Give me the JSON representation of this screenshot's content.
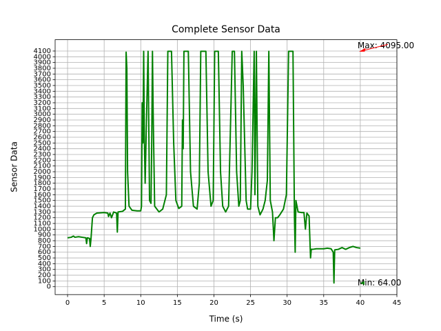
{
  "chart_data": {
    "type": "line",
    "title": "Complete Sensor Data",
    "xlabel": "Time (s)",
    "ylabel": "Sensor Data",
    "color": "#008000",
    "grid": true,
    "xlim": [
      -1.7,
      45
    ],
    "ylim": [
      -137.5,
      4296.5
    ],
    "xticks": [
      0,
      5,
      10,
      15,
      20,
      25,
      30,
      35,
      40,
      45
    ],
    "yticks": [
      0,
      100,
      200,
      300,
      400,
      500,
      600,
      700,
      800,
      900,
      1000,
      1100,
      1200,
      1300,
      1400,
      1500,
      1600,
      1700,
      1800,
      1900,
      2000,
      2100,
      2200,
      2300,
      2400,
      2500,
      2600,
      2700,
      2800,
      2900,
      3000,
      3100,
      3200,
      3300,
      3400,
      3500,
      3600,
      3700,
      3800,
      3900,
      4000,
      4100
    ],
    "x": [
      0,
      0.5,
      0.8,
      1,
      1.5,
      2,
      2.5,
      2.6,
      2.7,
      3,
      3.1,
      3.2,
      3.4,
      3.6,
      4,
      5,
      5.5,
      5.6,
      5.8,
      6,
      6.3,
      6.7,
      6.8,
      6.9,
      7.5,
      7.9,
      8.0,
      8.1,
      8.2,
      8.4,
      8.8,
      9.5,
      10,
      10.1,
      10.2,
      10.3,
      10.4,
      10.5,
      10.6,
      10.8,
      11,
      11.2,
      11.4,
      11.5,
      11.6,
      11.7,
      11.9,
      12.2,
      12.5,
      13,
      13.5,
      13.7,
      14.2,
      14.5,
      14.8,
      15.2,
      15.6,
      15.7,
      15.8,
      15.9,
      16.5,
      16.8,
      17.2,
      17.7,
      18,
      18.2,
      18.9,
      19.2,
      19.6,
      19.9,
      20.1,
      20.6,
      20.9,
      21.2,
      21.6,
      22,
      22.3,
      22.5,
      22.8,
      23.1,
      23.4,
      23.6,
      23.8,
      24,
      24.2,
      24.4,
      24.6,
      25,
      25.2,
      25.5,
      25.6,
      25.8,
      26,
      26.3,
      26.7,
      27,
      27.3,
      27.5,
      27.7,
      28,
      28.2,
      28.4,
      28.7,
      29,
      29.5,
      29.9,
      30.2,
      30.8,
      31,
      31.1,
      31.2,
      31.5,
      32,
      32.3,
      32.5,
      32.7,
      33,
      33.2,
      33.3,
      33.5,
      34,
      35,
      35.5,
      36,
      36.3,
      36.4,
      36.5,
      37,
      37.5,
      38,
      38.5,
      39,
      39.5,
      40
    ],
    "values": [
      850,
      860,
      880,
      860,
      870,
      860,
      850,
      750,
      850,
      840,
      700,
      830,
      1200,
      1250,
      1280,
      1290,
      1280,
      1220,
      1280,
      1200,
      1300,
      1280,
      950,
      1300,
      1310,
      1350,
      4080,
      3800,
      2000,
      1400,
      1330,
      1320,
      1320,
      1400,
      3200,
      2500,
      4095,
      2500,
      1800,
      3000,
      4095,
      1500,
      1450,
      2500,
      4095,
      3000,
      1400,
      1350,
      1300,
      1350,
      1600,
      4095,
      4095,
      2500,
      1500,
      1360,
      1400,
      2900,
      2400,
      4095,
      4095,
      2000,
      1400,
      1350,
      1800,
      4095,
      4095,
      2000,
      1400,
      1500,
      4095,
      4095,
      2000,
      1400,
      1300,
      1400,
      3000,
      4095,
      4095,
      2000,
      1400,
      1500,
      4095,
      3500,
      2500,
      1500,
      1350,
      1350,
      2000,
      4095,
      1600,
      4095,
      1400,
      1250,
      1350,
      1500,
      1850,
      4095,
      1500,
      1300,
      800,
      1200,
      1200,
      1250,
      1350,
      1600,
      4095,
      4095,
      1200,
      600,
      1500,
      1300,
      1290,
      1290,
      1000,
      1280,
      1230,
      500,
      650,
      650,
      660,
      660,
      670,
      660,
      600,
      64,
      640,
      650,
      680,
      650,
      680,
      700,
      680,
      670
    ],
    "annotations": [
      {
        "text": "Max: 4095.00",
        "x": 40,
        "y": 4095,
        "color": "#ff0000"
      },
      {
        "text": "Min: 64.00",
        "x": 40,
        "y": 64,
        "color": "#008000"
      }
    ]
  }
}
